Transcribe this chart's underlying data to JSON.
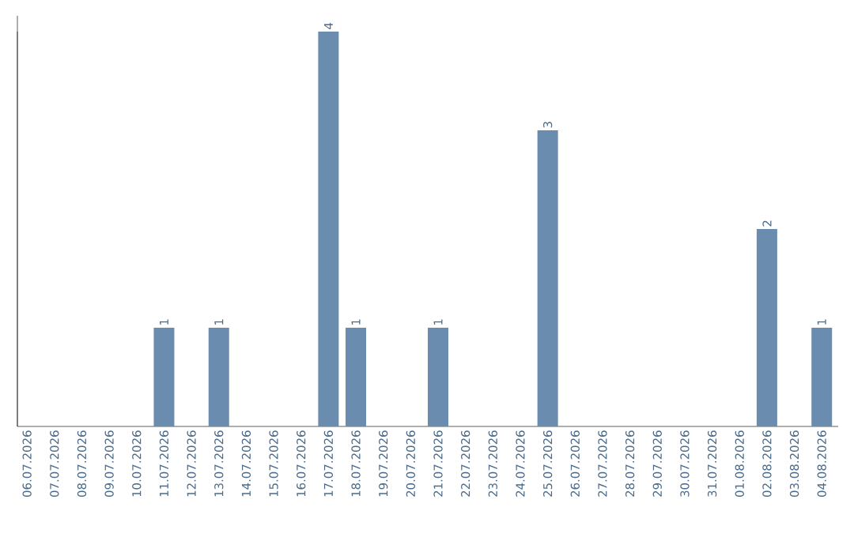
{
  "chart_data": {
    "type": "bar",
    "categories": [
      "06.07.2026",
      "07.07.2026",
      "08.07.2026",
      "09.07.2026",
      "10.07.2026",
      "11.07.2026",
      "12.07.2026",
      "13.07.2026",
      "14.07.2026",
      "15.07.2026",
      "16.07.2026",
      "17.07.2026",
      "18.07.2026",
      "19.07.2026",
      "20.07.2026",
      "21.07.2026",
      "22.07.2026",
      "23.07.2026",
      "24.07.2026",
      "25.07.2026",
      "26.07.2026",
      "27.07.2026",
      "28.07.2026",
      "29.07.2026",
      "30.07.2026",
      "31.07.2026",
      "01.08.2026",
      "02.08.2026",
      "03.08.2026",
      "04.08.2026"
    ],
    "values": [
      0,
      0,
      0,
      0,
      0,
      1,
      0,
      1,
      0,
      0,
      0,
      4,
      1,
      0,
      0,
      1,
      0,
      0,
      0,
      3,
      0,
      0,
      0,
      0,
      0,
      0,
      0,
      2,
      0,
      1
    ],
    "color": "#6a8caf",
    "ylim": [
      0,
      4
    ],
    "value_labels": [
      null,
      null,
      null,
      null,
      null,
      "1",
      null,
      "1",
      null,
      null,
      null,
      "4",
      "1",
      null,
      null,
      "1",
      null,
      null,
      null,
      "3",
      null,
      null,
      null,
      null,
      null,
      null,
      null,
      "2",
      null,
      "1"
    ],
    "tick_labels": "x"
  }
}
